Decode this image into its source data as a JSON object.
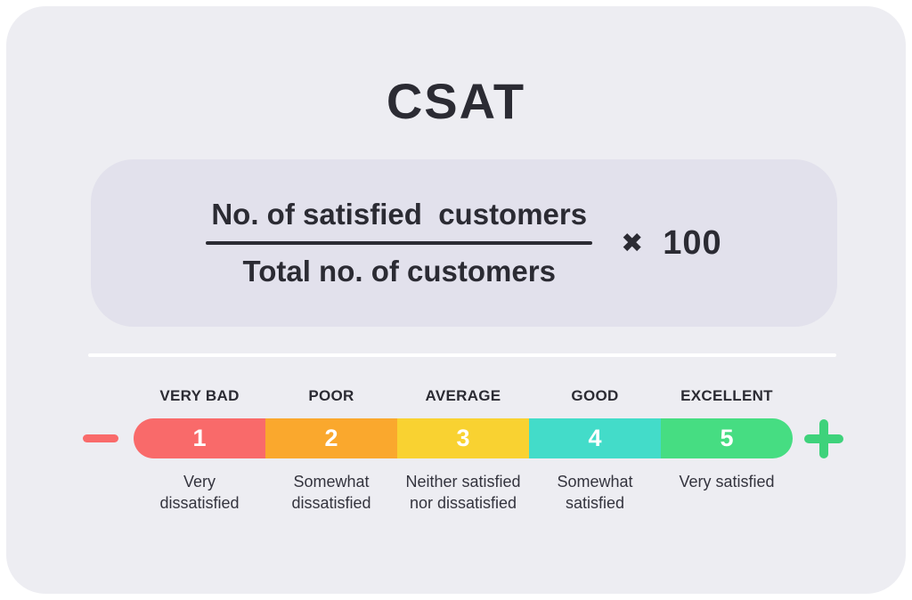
{
  "title": "CSAT",
  "formula": {
    "numerator": "No. of satisfied  customers",
    "denominator": "Total no. of customers",
    "multiply_symbol": "✖",
    "multiplier": "100"
  },
  "scale": {
    "minus_symbol_color": "#F96A6A",
    "plus_symbol_color": "#3ED27B",
    "segments": [
      {
        "rating": "VERY BAD",
        "number": "1",
        "color": "#F96A6A",
        "description": "Very\ndissatisfied"
      },
      {
        "rating": "POOR",
        "number": "2",
        "color": "#FAA82D",
        "description": "Somewhat\ndissatisfied"
      },
      {
        "rating": "AVERAGE",
        "number": "3",
        "color": "#F9D231",
        "description": "Neither satisfied\nnor dissatisfied"
      },
      {
        "rating": "GOOD",
        "number": "4",
        "color": "#43DCC9",
        "description": "Somewhat\nsatisfied"
      },
      {
        "rating": "EXCELLENT",
        "number": "5",
        "color": "#46DD82",
        "description": "Very satisfied"
      }
    ]
  },
  "colors": {
    "page_background": "#FFFFFF",
    "card_background": "#EDEDF2",
    "formula_box_background": "#E2E1EC",
    "divider": "#FFFFFF",
    "text_dark": "#2B2B33",
    "number_text": "#FFFFFF"
  }
}
